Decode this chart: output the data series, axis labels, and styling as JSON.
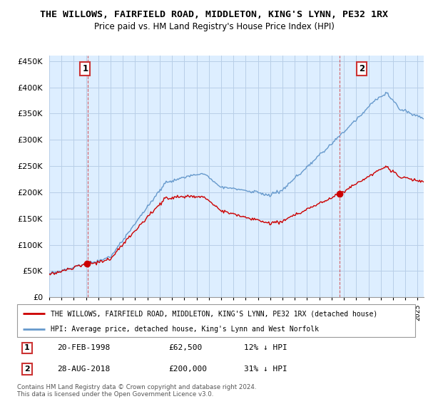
{
  "title": "THE WILLOWS, FAIRFIELD ROAD, MIDDLETON, KING'S LYNN, PE32 1RX",
  "subtitle": "Price paid vs. HM Land Registry's House Price Index (HPI)",
  "legend_red": "THE WILLOWS, FAIRFIELD ROAD, MIDDLETON, KING'S LYNN, PE32 1RX (detached house)",
  "legend_blue": "HPI: Average price, detached house, King's Lynn and West Norfolk",
  "annotation1_label": "1",
  "annotation1_date": "20-FEB-1998",
  "annotation1_price": "£62,500",
  "annotation1_hpi": "12% ↓ HPI",
  "annotation1_year": 1998.13,
  "annotation1_value": 62500,
  "annotation2_label": "2",
  "annotation2_date": "28-AUG-2018",
  "annotation2_price": "£200,000",
  "annotation2_hpi": "31% ↓ HPI",
  "annotation2_year": 2018.65,
  "annotation2_value": 200000,
  "footer": "Contains HM Land Registry data © Crown copyright and database right 2024.\nThis data is licensed under the Open Government Licence v3.0.",
  "ylim": [
    0,
    460000
  ],
  "yticks": [
    0,
    50000,
    100000,
    150000,
    200000,
    250000,
    300000,
    350000,
    400000,
    450000
  ],
  "xlim_start": 1995.0,
  "xlim_end": 2025.5,
  "background_color": "#ffffff",
  "chart_bg_color": "#ddeeff",
  "grid_color": "#b8cfe8",
  "red_color": "#cc0000",
  "blue_color": "#6699cc",
  "annotation_box_color": "#cc3333"
}
